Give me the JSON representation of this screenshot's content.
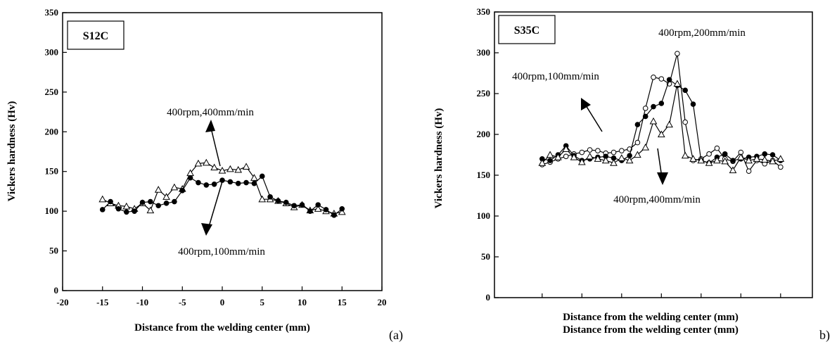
{
  "chart_data": [
    {
      "panel_label": "(a)",
      "type": "line",
      "sample_label": "S12C",
      "xlabel": "Distance from the welding center (mm)",
      "ylabel": "Vickers hardness (Hv)",
      "xlim": [
        -20,
        20
      ],
      "ylim": [
        0,
        350
      ],
      "xticks": [
        -20,
        -15,
        -10,
        -5,
        0,
        5,
        10,
        15,
        20
      ],
      "yticks": [
        0,
        50,
        100,
        150,
        200,
        250,
        300,
        350
      ],
      "grid": false,
      "annotations": [
        {
          "text": "400rpm,400mm/min",
          "series": "400rpm,400mm/min"
        },
        {
          "text": "400rpm,100mm/min",
          "series": "400rpm,100mm/min"
        }
      ],
      "series": [
        {
          "name": "400rpm,400mm/min",
          "marker": "triangle-open",
          "x": [
            -15,
            -14,
            -13,
            -12,
            -11,
            -10,
            -9,
            -8,
            -7,
            -6,
            -5,
            -4,
            -3,
            -2,
            -1,
            0,
            1,
            2,
            3,
            4,
            5,
            6,
            7,
            8,
            9,
            10,
            11,
            12,
            13,
            14,
            15
          ],
          "y": [
            115,
            110,
            107,
            106,
            103,
            110,
            101,
            127,
            118,
            130,
            128,
            148,
            160,
            161,
            155,
            151,
            153,
            152,
            156,
            142,
            115,
            115,
            113,
            110,
            105,
            108,
            101,
            103,
            100,
            97,
            99
          ]
        },
        {
          "name": "400rpm,100mm/min",
          "marker": "circle-filled",
          "x": [
            -15,
            -14,
            -13,
            -12,
            -11,
            -10,
            -9,
            -8,
            -7,
            -6,
            -5,
            -4,
            -3,
            -2,
            -1,
            0,
            1,
            2,
            3,
            4,
            5,
            6,
            7,
            8,
            9,
            10,
            11,
            12,
            13,
            14,
            15
          ],
          "y": [
            102,
            112,
            103,
            99,
            100,
            111,
            112,
            107,
            110,
            112,
            126,
            142,
            136,
            133,
            134,
            139,
            137,
            135,
            136,
            135,
            144,
            118,
            113,
            111,
            107,
            108,
            100,
            108,
            102,
            95,
            103
          ]
        }
      ]
    },
    {
      "panel_label": "b)",
      "type": "line",
      "sample_label": "S35C",
      "xlabel": "Distance from the welding center (mm)",
      "ylabel": "Vickers hardness (Hv)",
      "ylim": [
        0,
        350
      ],
      "yticks": [
        0,
        50,
        100,
        150,
        200,
        250,
        300,
        350
      ],
      "grid": false,
      "annotations": [
        {
          "text": "400rpm,200mm/min",
          "series": "400rpm,200mm/min"
        },
        {
          "text": "400rpm,100mm/min",
          "series": "400rpm,100mm/min"
        },
        {
          "text": "400rpm,400mm/min",
          "series": "400rpm,400mm/min"
        }
      ],
      "series": [
        {
          "name": "400rpm,200mm/min",
          "marker": "circle-open",
          "x": [
            -15,
            -14,
            -13,
            -12,
            -11,
            -10,
            -9,
            -8,
            -7,
            -6,
            -5,
            -4,
            -3,
            -2,
            -1,
            0,
            1,
            2,
            3,
            4,
            5,
            6,
            7,
            8,
            9,
            10,
            11,
            12,
            13,
            14,
            15
          ],
          "y": [
            163,
            166,
            170,
            173,
            176,
            178,
            181,
            180,
            177,
            178,
            180,
            182,
            190,
            232,
            270,
            268,
            262,
            299,
            215,
            168,
            170,
            176,
            183,
            170,
            167,
            178,
            155,
            168,
            164,
            168,
            160
          ]
        },
        {
          "name": "400rpm,100mm/min",
          "marker": "circle-filled",
          "x": [
            -15,
            -14,
            -13,
            -12,
            -11,
            -10,
            -9,
            -8,
            -7,
            -6,
            -5,
            -4,
            -3,
            -2,
            -1,
            0,
            1,
            2,
            3,
            4,
            5,
            6,
            7,
            8,
            9,
            10,
            11,
            12,
            13,
            14,
            15
          ],
          "y": [
            170,
            168,
            175,
            186,
            174,
            168,
            170,
            172,
            173,
            171,
            168,
            174,
            212,
            222,
            234,
            238,
            267,
            260,
            254,
            237,
            168,
            165,
            172,
            176,
            168,
            170,
            172,
            173,
            176,
            175,
            168
          ]
        },
        {
          "name": "400rpm,400mm/min",
          "marker": "triangle-open",
          "x": [
            -15,
            -14,
            -13,
            -12,
            -11,
            -10,
            -9,
            -8,
            -7,
            -6,
            -5,
            -4,
            -3,
            -2,
            -1,
            0,
            1,
            2,
            3,
            4,
            5,
            6,
            7,
            8,
            9,
            10,
            11,
            12,
            13,
            14,
            15
          ],
          "y": [
            165,
            175,
            172,
            182,
            172,
            166,
            173,
            170,
            168,
            165,
            171,
            168,
            175,
            184,
            216,
            200,
            212,
            262,
            174,
            170,
            168,
            165,
            168,
            167,
            156,
            172,
            168,
            170,
            169,
            167,
            170
          ]
        }
      ]
    }
  ]
}
